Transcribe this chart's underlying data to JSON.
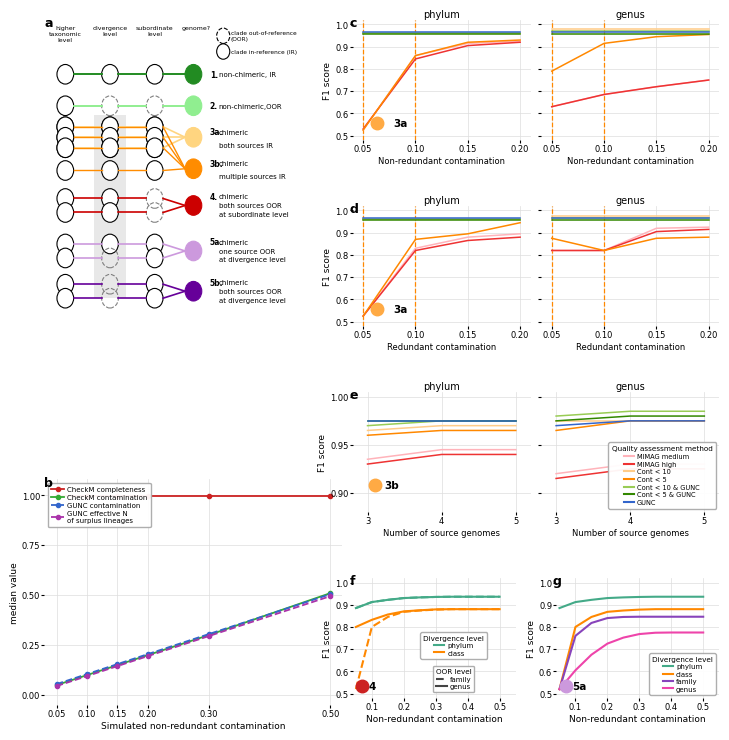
{
  "panel_c": {
    "xlim": [
      0.04,
      0.21
    ],
    "ylim": [
      0.48,
      1.02
    ],
    "xticks": [
      0.05,
      0.1,
      0.15,
      0.2
    ],
    "yticks": [
      0.5,
      0.6,
      0.7,
      0.8,
      0.9,
      1.0
    ],
    "vlines": [
      0.05,
      0.1
    ],
    "phylum": {
      "MIMAG_medium": [
        0.525,
        0.86,
        0.915,
        0.925
      ],
      "MIMAG_high": [
        0.53,
        0.845,
        0.905,
        0.92
      ],
      "Cont10": [
        0.96,
        0.96,
        0.96,
        0.96
      ],
      "Cont5": [
        0.525,
        0.86,
        0.92,
        0.93
      ],
      "Cont10_GUNC": [
        0.96,
        0.96,
        0.96,
        0.96
      ],
      "Cont5_GUNC": [
        0.955,
        0.955,
        0.955,
        0.955
      ],
      "GUNC": [
        0.965,
        0.965,
        0.965,
        0.965
      ]
    },
    "genus": {
      "MIMAG_medium": [
        0.63,
        0.685,
        0.72,
        0.75
      ],
      "MIMAG_high": [
        0.63,
        0.685,
        0.72,
        0.75
      ],
      "Cont10": [
        0.98,
        0.98,
        0.98,
        0.98
      ],
      "Cont5": [
        0.79,
        0.915,
        0.945,
        0.955
      ],
      "Cont10_GUNC": [
        0.97,
        0.97,
        0.97,
        0.97
      ],
      "Cont5_GUNC": [
        0.955,
        0.955,
        0.955,
        0.955
      ],
      "GUNC": [
        0.965,
        0.965,
        0.965,
        0.965
      ]
    },
    "x": [
      0.05,
      0.1,
      0.15,
      0.2
    ]
  },
  "panel_d": {
    "xlim": [
      0.04,
      0.21
    ],
    "ylim": [
      0.48,
      1.02
    ],
    "xticks": [
      0.05,
      0.1,
      0.15,
      0.2
    ],
    "yticks": [
      0.5,
      0.6,
      0.7,
      0.8,
      0.9,
      1.0
    ],
    "vlines": [
      0.05,
      0.1
    ],
    "phylum": {
      "MIMAG_medium": [
        0.525,
        0.83,
        0.88,
        0.895
      ],
      "MIMAG_high": [
        0.525,
        0.82,
        0.865,
        0.88
      ],
      "Cont10": [
        0.96,
        0.96,
        0.96,
        0.96
      ],
      "Cont5": [
        0.525,
        0.87,
        0.895,
        0.945
      ],
      "Cont10_GUNC": [
        0.96,
        0.96,
        0.96,
        0.96
      ],
      "Cont5_GUNC": [
        0.955,
        0.955,
        0.955,
        0.955
      ],
      "GUNC": [
        0.965,
        0.965,
        0.965,
        0.965
      ]
    },
    "genus": {
      "MIMAG_medium": [
        0.82,
        0.82,
        0.92,
        0.925
      ],
      "MIMAG_high": [
        0.82,
        0.82,
        0.905,
        0.915
      ],
      "Cont10": [
        0.975,
        0.975,
        0.975,
        0.975
      ],
      "Cont5": [
        0.875,
        0.82,
        0.875,
        0.88
      ],
      "Cont10_GUNC": [
        0.965,
        0.965,
        0.965,
        0.965
      ],
      "Cont5_GUNC": [
        0.955,
        0.955,
        0.955,
        0.955
      ],
      "GUNC": [
        0.965,
        0.965,
        0.965,
        0.965
      ]
    },
    "x": [
      0.05,
      0.1,
      0.15,
      0.2
    ]
  },
  "panel_e": {
    "xlim": [
      2.8,
      5.2
    ],
    "ylim": [
      0.88,
      1.005
    ],
    "xticks": [
      3,
      4,
      5
    ],
    "yticks": [
      0.9,
      0.95,
      1.0
    ],
    "phylum": {
      "MIMAG_medium": [
        0.935,
        0.945,
        0.945
      ],
      "MIMAG_high": [
        0.93,
        0.94,
        0.94
      ],
      "Cont10": [
        0.965,
        0.97,
        0.97
      ],
      "Cont5": [
        0.96,
        0.965,
        0.965
      ],
      "Cont10_GUNC": [
        0.97,
        0.975,
        0.975
      ],
      "Cont5_GUNC": [
        0.975,
        0.975,
        0.975
      ],
      "GUNC": [
        0.975,
        0.975,
        0.975
      ]
    },
    "genus": {
      "MIMAG_medium": [
        0.92,
        0.93,
        0.93
      ],
      "MIMAG_high": [
        0.915,
        0.925,
        0.925
      ],
      "Cont10": [
        0.975,
        0.975,
        0.975
      ],
      "Cont5": [
        0.965,
        0.975,
        0.975
      ],
      "Cont10_GUNC": [
        0.98,
        0.985,
        0.985
      ],
      "Cont5_GUNC": [
        0.975,
        0.98,
        0.98
      ],
      "GUNC": [
        0.97,
        0.975,
        0.975
      ]
    },
    "x": [
      3,
      4,
      5
    ]
  },
  "panel_f": {
    "xlim": [
      0.04,
      0.55
    ],
    "ylim": [
      0.48,
      1.02
    ],
    "xticks": [
      0.1,
      0.2,
      0.3,
      0.4,
      0.5
    ],
    "yticks": [
      0.5,
      0.6,
      0.7,
      0.8,
      0.9,
      1.0
    ],
    "x": [
      0.05,
      0.1,
      0.15,
      0.2,
      0.25,
      0.3,
      0.35,
      0.4,
      0.45,
      0.5
    ],
    "phylum_family": [
      0.885,
      0.912,
      0.922,
      0.93,
      0.933,
      0.935,
      0.936,
      0.936,
      0.936,
      0.936
    ],
    "phylum_genus": [
      0.885,
      0.912,
      0.922,
      0.93,
      0.933,
      0.935,
      0.936,
      0.936,
      0.936,
      0.936
    ],
    "class_family": [
      0.52,
      0.8,
      0.845,
      0.868,
      0.874,
      0.878,
      0.88,
      0.88,
      0.88,
      0.88
    ],
    "class_genus": [
      0.8,
      0.832,
      0.856,
      0.87,
      0.875,
      0.879,
      0.88,
      0.88,
      0.88,
      0.88
    ]
  },
  "panel_g": {
    "xlim": [
      0.04,
      0.55
    ],
    "ylim": [
      0.48,
      1.02
    ],
    "xticks": [
      0.1,
      0.2,
      0.3,
      0.4,
      0.5
    ],
    "yticks": [
      0.5,
      0.6,
      0.7,
      0.8,
      0.9,
      1.0
    ],
    "x": [
      0.05,
      0.1,
      0.15,
      0.2,
      0.25,
      0.3,
      0.35,
      0.4,
      0.45,
      0.5
    ],
    "phylum": [
      0.885,
      0.912,
      0.922,
      0.93,
      0.933,
      0.935,
      0.936,
      0.936,
      0.936,
      0.936
    ],
    "class": [
      0.52,
      0.8,
      0.845,
      0.868,
      0.874,
      0.878,
      0.88,
      0.88,
      0.88,
      0.88
    ],
    "family": [
      0.52,
      0.76,
      0.818,
      0.84,
      0.845,
      0.846,
      0.846,
      0.846,
      0.846,
      0.846
    ],
    "genus": [
      0.52,
      0.605,
      0.675,
      0.725,
      0.752,
      0.768,
      0.774,
      0.775,
      0.775,
      0.775
    ]
  },
  "panel_b": {
    "xlim": [
      0.03,
      0.52
    ],
    "ylim": [
      -0.05,
      1.08
    ],
    "xticks": [
      0.05,
      0.1,
      0.15,
      0.2,
      0.3,
      0.5
    ],
    "xtick_labels": [
      "0.05",
      "0.10",
      "0.15",
      "0.20",
      "0.30",
      "0.50"
    ],
    "yticks": [
      0.0,
      0.25,
      0.5,
      0.75,
      1.0
    ],
    "x": [
      0.05,
      0.1,
      0.15,
      0.2,
      0.3,
      0.5
    ],
    "checkm_completeness": [
      0.995,
      0.995,
      0.995,
      0.995,
      0.995,
      0.995
    ],
    "checkm_contamination": [
      0.05,
      0.1,
      0.15,
      0.2,
      0.3,
      0.51
    ],
    "gunc_contamination": [
      0.055,
      0.105,
      0.155,
      0.205,
      0.305,
      0.505
    ],
    "gunc_effective_n": [
      0.045,
      0.095,
      0.145,
      0.195,
      0.295,
      0.495
    ]
  },
  "colors": {
    "MIMAG_medium": "#ffb3ba",
    "MIMAG_high": "#ee3333",
    "Cont10": "#ffcc88",
    "Cont5": "#ff8800",
    "Cont10_GUNC": "#99cc55",
    "Cont5_GUNC": "#338800",
    "GUNC": "#3366cc",
    "phylum_f": "#44aa88",
    "class_f": "#ff8800",
    "family_g": "#8844bb",
    "genus_g": "#ee44aa",
    "checkm_completeness": "#cc2222",
    "checkm_contamination": "#33aa33",
    "gunc_contamination": "#3366cc",
    "gunc_effective_n": "#aa33aa"
  }
}
